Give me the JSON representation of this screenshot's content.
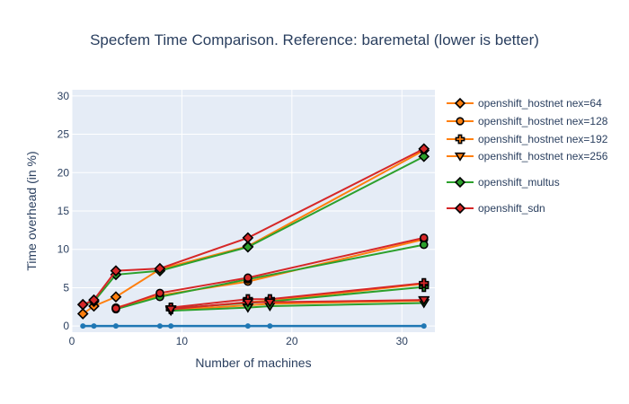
{
  "chart_data": {
    "type": "line",
    "title": "Specfem Time Comparison. Reference: baremetal (lower is better)",
    "xlabel": "Number of machines",
    "ylabel": "Time overhead (in %)",
    "xlim": [
      0,
      33
    ],
    "ylim": [
      -0.8,
      30.8
    ],
    "xticks": [
      0,
      10,
      20,
      30
    ],
    "yticks": [
      0,
      5,
      10,
      15,
      20,
      25,
      30
    ],
    "grid": true,
    "legend_position": "right",
    "background_color": "#e5ecf6",
    "reference": {
      "x": [
        1,
        2,
        4,
        8,
        9,
        16,
        18,
        32
      ],
      "y": [
        0,
        0,
        0,
        0,
        0,
        0,
        0,
        0
      ],
      "color": "#1f77b4"
    },
    "series": [
      {
        "name": "openshift_hostnet nex=64",
        "color": "#ff7f0e",
        "marker": "diamond",
        "x": [
          1,
          2,
          4,
          8,
          16,
          32
        ],
        "y": [
          1.6,
          2.6,
          3.8,
          7.4,
          10.4,
          22.9
        ]
      },
      {
        "name": "openshift_hostnet nex=128",
        "color": "#ff7f0e",
        "marker": "circle",
        "x": [
          4,
          8,
          16,
          32
        ],
        "y": [
          2.4,
          4.0,
          5.8,
          11.3
        ]
      },
      {
        "name": "openshift_hostnet nex=192",
        "color": "#ff7f0e",
        "marker": "cross",
        "x": [
          9,
          16,
          18,
          32
        ],
        "y": [
          2.2,
          3.1,
          3.3,
          5.5
        ]
      },
      {
        "name": "openshift_hostnet nex=256",
        "color": "#ff7f0e",
        "marker": "triangle-down",
        "x": [
          9,
          16,
          18,
          32
        ],
        "y": [
          2.1,
          2.7,
          2.9,
          3.3
        ]
      },
      {
        "name": "openshift_multus",
        "color": "#2ca02c",
        "marker": "diamond",
        "x": [
          1,
          2,
          4,
          8,
          16,
          32
        ],
        "y": [
          2.8,
          3.2,
          6.7,
          7.2,
          10.3,
          22.1
        ]
      },
      {
        "name": "openshift_sdn",
        "color": "#d62728",
        "marker": "diamond",
        "x": [
          1,
          2,
          4,
          8,
          16,
          32
        ],
        "y": [
          2.8,
          3.4,
          7.2,
          7.5,
          11.5,
          23.1
        ]
      },
      {
        "name": "",
        "color": "#2ca02c",
        "marker": "circle",
        "x": [
          4,
          8,
          16,
          32
        ],
        "y": [
          2.2,
          3.8,
          6.1,
          10.6
        ]
      },
      {
        "name": "",
        "color": "#d62728",
        "marker": "circle",
        "x": [
          4,
          8,
          16,
          32
        ],
        "y": [
          2.3,
          4.3,
          6.3,
          11.5
        ]
      },
      {
        "name": "",
        "color": "#2ca02c",
        "marker": "cross",
        "x": [
          9,
          16,
          18,
          32
        ],
        "y": [
          2.3,
          3.0,
          3.2,
          5.1
        ]
      },
      {
        "name": "",
        "color": "#d62728",
        "marker": "cross",
        "x": [
          9,
          16,
          18,
          32
        ],
        "y": [
          2.4,
          3.5,
          3.5,
          5.6
        ]
      },
      {
        "name": "",
        "color": "#2ca02c",
        "marker": "triangle-down",
        "x": [
          9,
          16,
          18,
          32
        ],
        "y": [
          2.0,
          2.4,
          2.6,
          3.0
        ]
      },
      {
        "name": "",
        "color": "#d62728",
        "marker": "triangle-down",
        "x": [
          9,
          16,
          18,
          32
        ],
        "y": [
          2.2,
          3.1,
          3.1,
          3.4
        ]
      }
    ]
  }
}
